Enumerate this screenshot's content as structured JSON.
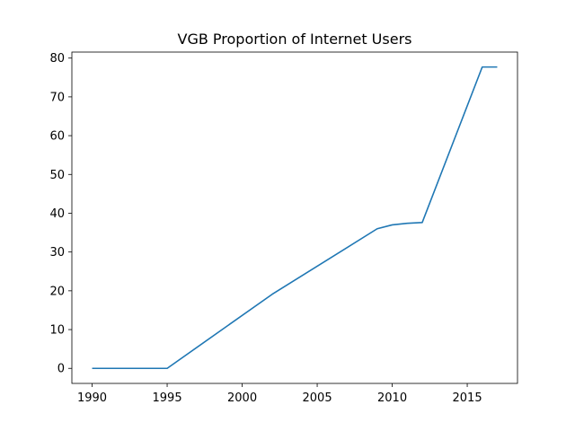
{
  "chart_data": {
    "type": "line",
    "title": "VGB Proportion of Internet Users",
    "xlabel": "",
    "ylabel": "",
    "xlim": [
      1988.65,
      2018.35
    ],
    "ylim": [
      -3.88,
      81.55
    ],
    "xticks": [
      1990,
      1995,
      2000,
      2005,
      2010,
      2015
    ],
    "yticks": [
      0,
      10,
      20,
      30,
      40,
      50,
      60,
      70,
      80
    ],
    "grid": false,
    "legend": "none",
    "series": [
      {
        "color": "#1f77b4",
        "x": [
          1990,
          1991,
          1992,
          1993,
          1994,
          1995,
          2002,
          2009,
          2010,
          2011,
          2012,
          2016,
          2017
        ],
        "values": [
          0,
          0,
          0,
          0,
          0,
          0,
          19.1,
          36.0,
          37.0,
          37.4,
          37.6,
          77.7,
          77.7
        ]
      }
    ]
  }
}
